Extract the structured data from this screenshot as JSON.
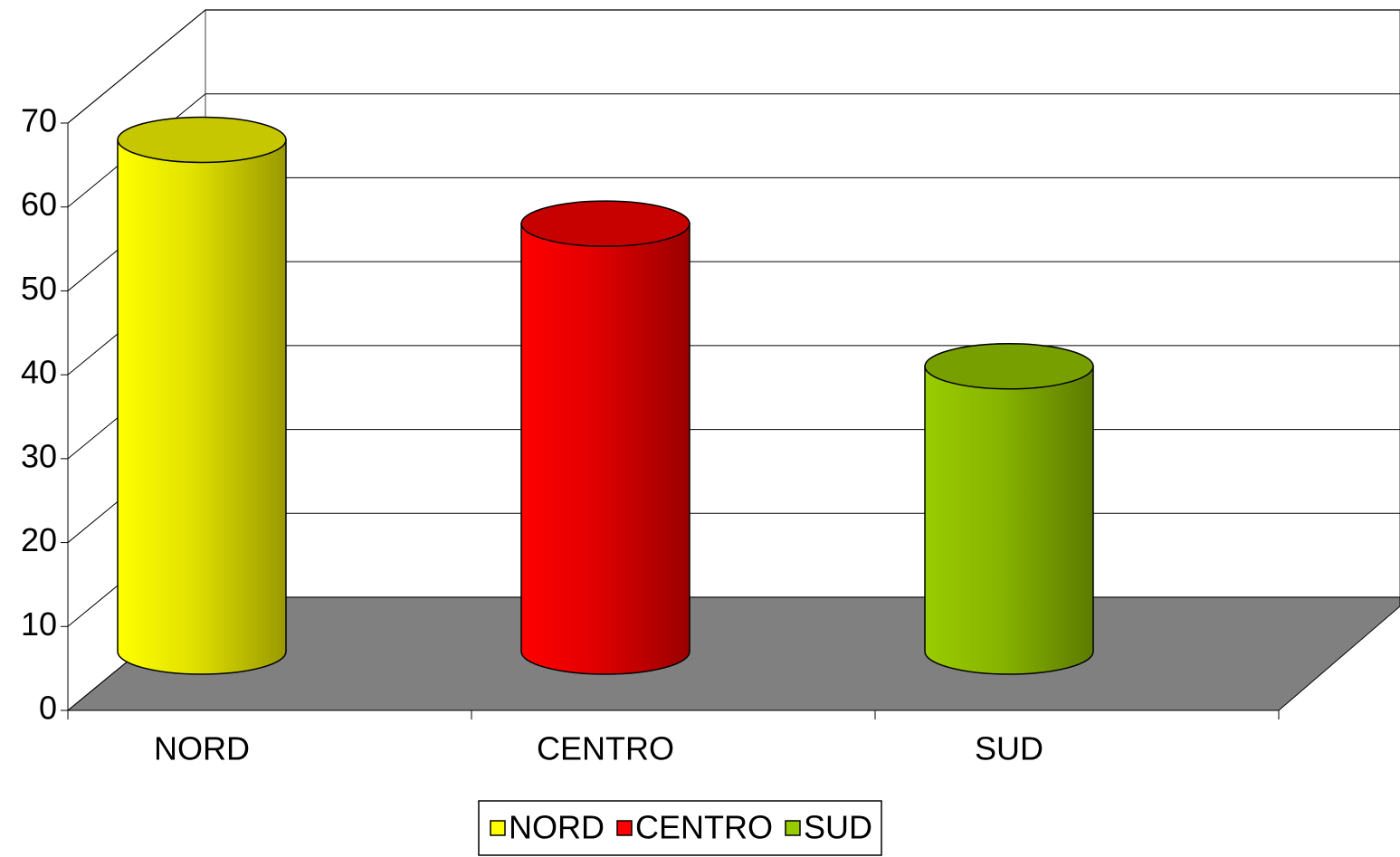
{
  "chart_data": {
    "type": "bar",
    "categories": [
      "NORD",
      "CENTRO",
      "SUD"
    ],
    "values": [
      61,
      51,
      34
    ],
    "colors": [
      "#ffff00",
      "#ff0000",
      "#99cc00"
    ],
    "ylim": [
      0,
      70
    ],
    "yticks": [
      0,
      10,
      20,
      30,
      40,
      50,
      60,
      70
    ],
    "grid": true,
    "legend": "bottom"
  }
}
